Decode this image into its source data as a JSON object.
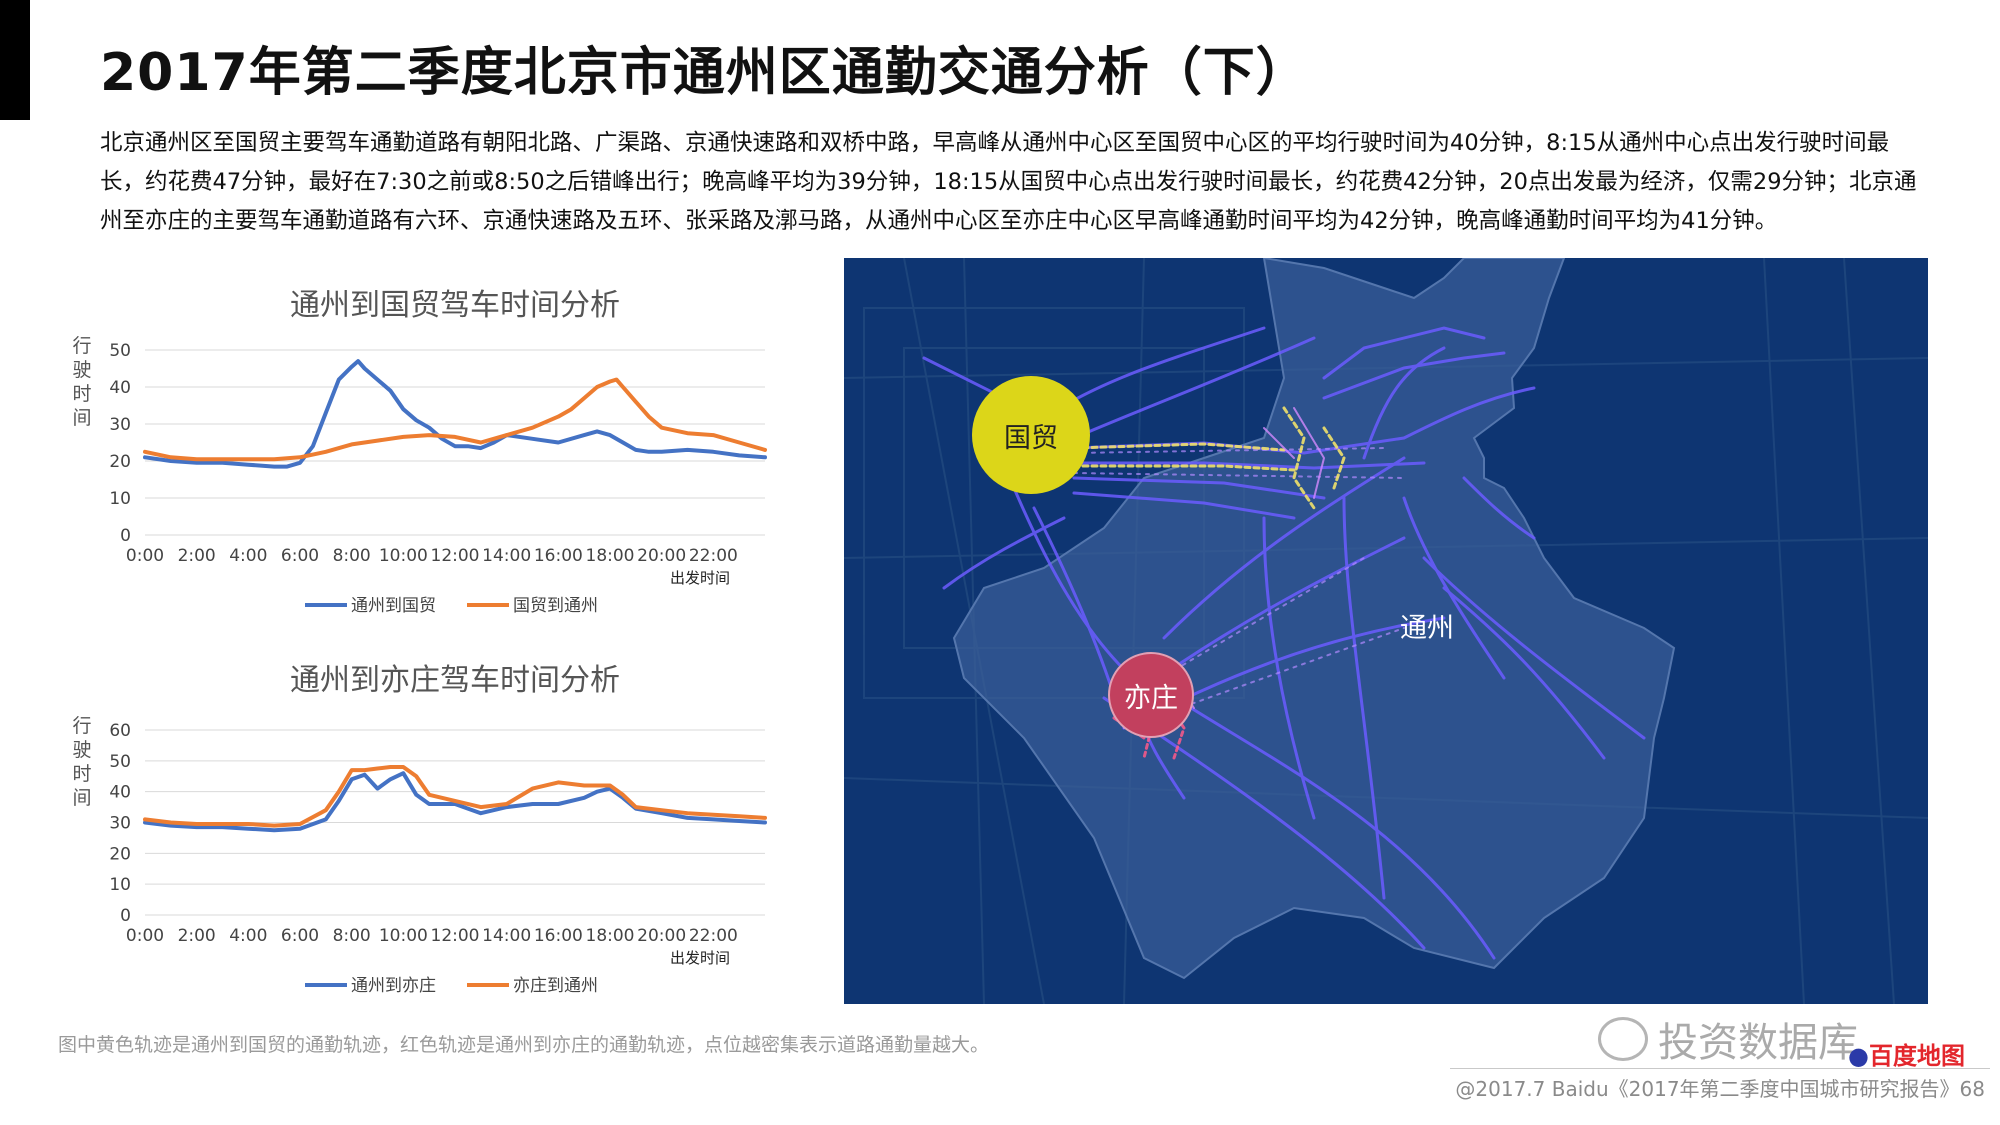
{
  "header": {
    "title": "2017年第二季度北京市通州区通勤交通分析（下）",
    "intro": "北京通州区至国贸主要驾车通勤道路有朝阳北路、广渠路、京通快速路和双桥中路，早高峰从通州中心区至国贸中心区的平均行驶时间为40分钟，8:15从通州中心点出发行驶时间最长，约花费47分钟，最好在7:30之前或8:50之后错峰出行；晚高峰平均为39分钟，18:15从国贸中心点出发行驶时间最长，约花费42分钟，20点出发最为经济，仅需29分钟；北京通州至亦庄的主要驾车通勤道路有六环、京通快速路及五环、张采路及漷马路，从通州中心区至亦庄中心区早高峰通勤时间平均为42分钟，晚高峰通勤时间平均为41分钟。"
  },
  "chart_data": [
    {
      "type": "line",
      "title": "通州到国贸驾车时间分析",
      "ylabel": "行驶时间",
      "xlabel": "出发时间",
      "ylim": [
        0,
        50
      ],
      "yticks": [
        0,
        10,
        20,
        30,
        40,
        50
      ],
      "xlim": [
        0,
        24
      ],
      "xtick_labels": [
        "0:00",
        "2:00",
        "4:00",
        "6:00",
        "8:00",
        "10:00",
        "12:00",
        "14:00",
        "16:00",
        "18:00",
        "20:00",
        "22:00"
      ],
      "grid": true,
      "legend_position": "bottom",
      "series": [
        {
          "name": "通州到国贸",
          "color": "#4472c4",
          "x": [
            0,
            1,
            2,
            3,
            4,
            5,
            5.5,
            6,
            6.5,
            7,
            7.5,
            8,
            8.25,
            8.5,
            9,
            9.5,
            10,
            10.5,
            11,
            11.5,
            12,
            12.5,
            13,
            13.5,
            14,
            15,
            16,
            17,
            17.5,
            18,
            18.5,
            19,
            19.5,
            20,
            21,
            22,
            23,
            24
          ],
          "y": [
            21,
            20,
            19.5,
            19.5,
            19,
            18.5,
            18.5,
            19.5,
            24,
            33,
            42,
            45.5,
            47,
            45,
            42,
            39,
            34,
            31,
            29,
            26,
            24,
            24,
            23.5,
            25,
            27,
            26,
            25,
            27,
            28,
            27,
            25,
            23,
            22.5,
            22.5,
            23,
            22.5,
            21.5,
            21
          ]
        },
        {
          "name": "国贸到通州",
          "color": "#ed7d31",
          "x": [
            0,
            1,
            2,
            3,
            4,
            5,
            6,
            7,
            8,
            9,
            10,
            11,
            12,
            13,
            14,
            15,
            16,
            16.5,
            17,
            17.5,
            18,
            18.25,
            18.5,
            19,
            19.5,
            20,
            21,
            22,
            23,
            24
          ],
          "y": [
            22.5,
            21,
            20.5,
            20.5,
            20.5,
            20.5,
            21,
            22.5,
            24.5,
            25.5,
            26.5,
            27,
            26.5,
            25,
            27,
            29,
            32,
            34,
            37,
            40,
            41.5,
            42,
            40,
            36,
            32,
            29,
            27.5,
            27,
            25,
            23
          ]
        }
      ]
    },
    {
      "type": "line",
      "title": "通州到亦庄驾车时间分析",
      "ylabel": "行驶时间",
      "xlabel": "出发时间",
      "ylim": [
        0,
        60
      ],
      "yticks": [
        0,
        10,
        20,
        30,
        40,
        50,
        60
      ],
      "xlim": [
        0,
        24
      ],
      "xtick_labels": [
        "0:00",
        "2:00",
        "4:00",
        "6:00",
        "8:00",
        "10:00",
        "12:00",
        "14:00",
        "16:00",
        "18:00",
        "20:00",
        "22:00"
      ],
      "grid": true,
      "legend_position": "bottom",
      "series": [
        {
          "name": "通州到亦庄",
          "color": "#4472c4",
          "x": [
            0,
            1,
            2,
            3,
            4,
            5,
            6,
            7,
            7.5,
            8,
            8.5,
            9,
            9.5,
            10,
            10.5,
            11,
            12,
            13,
            14,
            15,
            16,
            17,
            17.5,
            18,
            18.5,
            19,
            20,
            21,
            22,
            23,
            24
          ],
          "y": [
            30,
            29,
            28.5,
            28.5,
            28,
            27.5,
            28,
            31,
            37,
            44,
            45.5,
            41,
            44,
            46,
            39,
            36,
            36,
            33,
            35,
            36,
            36,
            38,
            40,
            41,
            38,
            34.5,
            33,
            31.5,
            31,
            30.5,
            30
          ]
        },
        {
          "name": "亦庄到通州",
          "color": "#ed7d31",
          "x": [
            0,
            1,
            2,
            3,
            4,
            5,
            6,
            7,
            7.5,
            8,
            8.5,
            9,
            9.5,
            10,
            10.5,
            11,
            12,
            13,
            14,
            15,
            16,
            17,
            18,
            18.5,
            19,
            20,
            21,
            22,
            23,
            24
          ],
          "y": [
            31,
            30,
            29.5,
            29.5,
            29.5,
            29,
            29.5,
            34,
            40,
            47,
            47,
            47.5,
            48,
            48,
            45,
            39,
            37,
            35,
            36,
            41,
            43,
            42,
            42,
            39,
            35,
            34,
            33,
            32.5,
            32,
            31.5
          ]
        }
      ]
    }
  ],
  "map": {
    "labels": {
      "guomao": "国贸",
      "yizhuang": "亦庄",
      "tongzhou": "通州"
    },
    "colors": {
      "background": "#0e3572",
      "district": "#3a5e99",
      "guomao_bubble": "#dcd619",
      "yizhuang_bubble": "#c2405e",
      "track": "#6b5cff"
    }
  },
  "footer": {
    "note": "图中黄色轨迹是通州到国贸的通勤轨迹，红色轨迹是通州到亦庄的通勤轨迹，点位越密集表示道路通勤量越大。",
    "copyright": "@2017.7 Baidu《2017年第二季度中国城市研究报告》68",
    "watermark": "投资数据库",
    "logo": "百度地图"
  }
}
